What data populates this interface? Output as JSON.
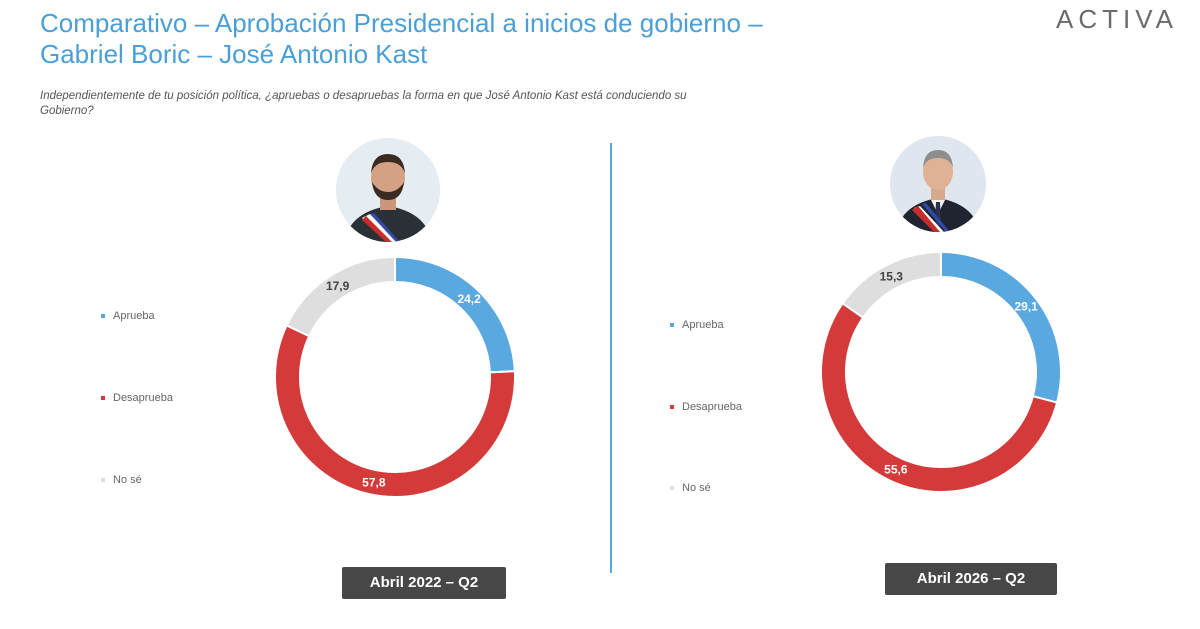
{
  "title_line1": "Comparativo – Aprobación Presidencial a inicios de gobierno –",
  "title_line2": "Gabriel Boric – José Antonio Kast",
  "logo": "ACTIVA",
  "question": "Independientemente de tu posición política, ¿apruebas o desapruebas la forma en que José Antonio Kast está conduciendo su Gobierno?",
  "colors": {
    "aprueba": "#5aa8e0",
    "desaprueba": "#d43a3a",
    "nose": "#dedede",
    "title": "#4a9fd6"
  },
  "chart_data": [
    {
      "type": "pie",
      "period": "Abril 2022 – Q2",
      "categories": [
        "Aprueba",
        "Desaprueba",
        "No sé"
      ],
      "values": [
        24.2,
        57.8,
        17.9
      ],
      "labels": [
        "24,2",
        "57,8",
        "17,9"
      ]
    },
    {
      "type": "pie",
      "period": "Abril 2026 – Q2",
      "categories": [
        "Aprueba",
        "Desaprueba",
        "No sé"
      ],
      "values": [
        29.1,
        55.6,
        15.3
      ],
      "labels": [
        "29,1",
        "55,6",
        "15,3"
      ]
    }
  ]
}
